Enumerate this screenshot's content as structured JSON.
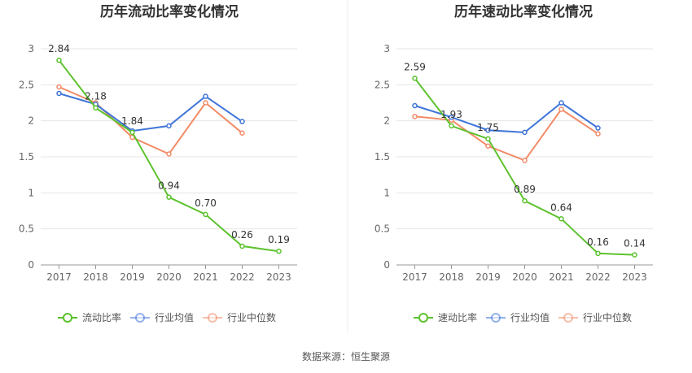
{
  "source": "数据来源：恒生聚源",
  "colors": {
    "company": "#5cc22d",
    "avg": "#3f74d9",
    "median": "#f28b67"
  },
  "chart_data": [
    {
      "type": "line",
      "title": "历年流动比率变化情况",
      "categories": [
        "2017",
        "2018",
        "2019",
        "2020",
        "2021",
        "2022",
        "2023"
      ],
      "ylim": [
        0,
        3
      ],
      "yticks": [
        "0",
        "0.5",
        "1",
        "1.5",
        "2",
        "2.5",
        "3"
      ],
      "grid": true,
      "legend_position": "bottom",
      "series": [
        {
          "name": "流动比率",
          "values": [
            2.84,
            2.18,
            1.84,
            0.94,
            0.7,
            0.26,
            0.19
          ],
          "labels": [
            "2.84",
            "2.18",
            "1.84",
            "0.94",
            "0.70",
            "0.26",
            "0.19"
          ]
        },
        {
          "name": "行业均值",
          "values": [
            2.38,
            2.23,
            1.86,
            1.93,
            2.34,
            1.99,
            null
          ]
        },
        {
          "name": "行业中位数",
          "values": [
            2.47,
            2.25,
            1.77,
            1.54,
            2.25,
            1.83,
            null
          ]
        }
      ]
    },
    {
      "type": "line",
      "title": "历年速动比率变化情况",
      "categories": [
        "2017",
        "2018",
        "2019",
        "2020",
        "2021",
        "2022",
        "2023"
      ],
      "ylim": [
        0,
        3
      ],
      "yticks": [
        "0",
        "0.5",
        "1",
        "1.5",
        "2",
        "2.5",
        "3"
      ],
      "grid": true,
      "legend_position": "bottom",
      "series": [
        {
          "name": "速动比率",
          "values": [
            2.59,
            1.93,
            1.75,
            0.89,
            0.64,
            0.16,
            0.14
          ],
          "labels": [
            "2.59",
            "1.93",
            "1.75",
            "0.89",
            "0.64",
            "0.16",
            "0.14"
          ]
        },
        {
          "name": "行业均值",
          "values": [
            2.21,
            2.05,
            1.87,
            1.84,
            2.25,
            1.9,
            null
          ]
        },
        {
          "name": "行业中位数",
          "values": [
            2.06,
            2.01,
            1.65,
            1.45,
            2.16,
            1.82,
            null
          ]
        }
      ]
    }
  ]
}
